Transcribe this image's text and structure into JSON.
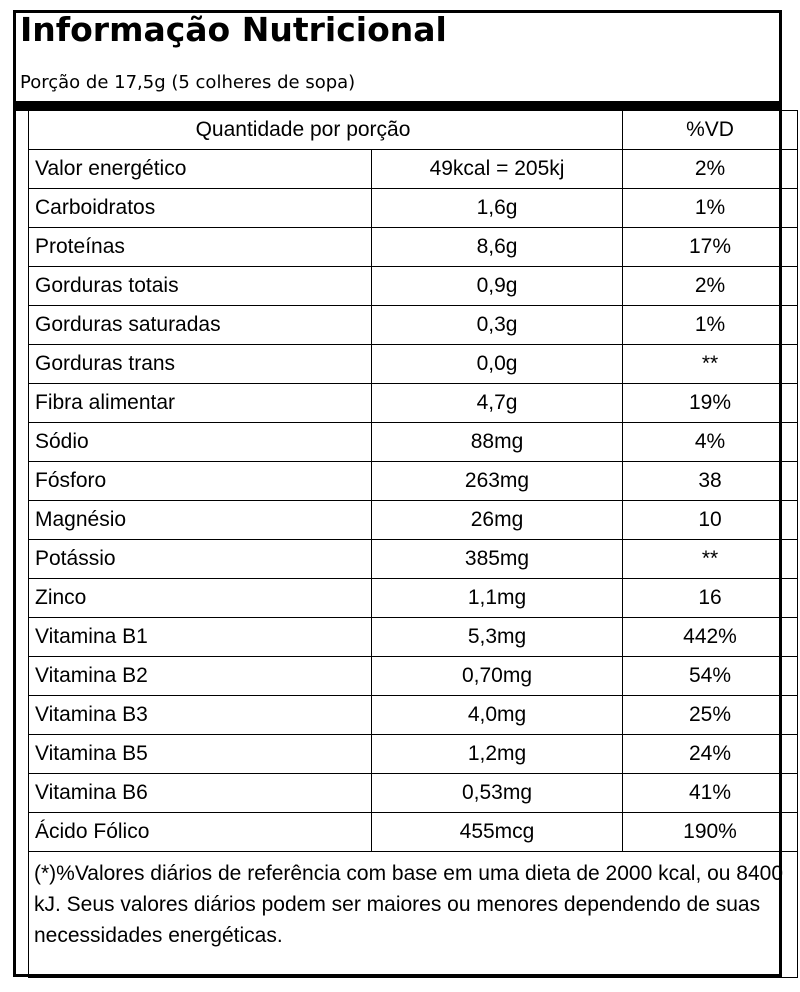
{
  "header": {
    "title": "Informação Nutricional",
    "serving": "Porção de 17,5g (5 colheres de sopa)"
  },
  "table": {
    "col_quantity": "Quantidade por porção",
    "col_vd": "%VD",
    "rows": [
      {
        "name": "Valor energético",
        "amount": "49kcal = 205kj",
        "vd": "2%"
      },
      {
        "name": "Carboidratos",
        "amount": "1,6g",
        "vd": "1%"
      },
      {
        "name": "Proteínas",
        "amount": "8,6g",
        "vd": "17%"
      },
      {
        "name": "Gorduras totais",
        "amount": "0,9g",
        "vd": "2%"
      },
      {
        "name": "Gorduras saturadas",
        "amount": "0,3g",
        "vd": "1%"
      },
      {
        "name": "Gorduras trans",
        "amount": "0,0g",
        "vd": "**"
      },
      {
        "name": "Fibra alimentar",
        "amount": "4,7g",
        "vd": "19%"
      },
      {
        "name": "Sódio",
        "amount": "88mg",
        "vd": "4%"
      },
      {
        "name": "Fósforo",
        "amount": "263mg",
        "vd": "38"
      },
      {
        "name": "Magnésio",
        "amount": "26mg",
        "vd": "10"
      },
      {
        "name": "Potássio",
        "amount": "385mg",
        "vd": "**"
      },
      {
        "name": "Zinco",
        "amount": "1,1mg",
        "vd": "16"
      },
      {
        "name": "Vitamina B1",
        "amount": "5,3mg",
        "vd": "442%"
      },
      {
        "name": "Vitamina B2",
        "amount": "0,70mg",
        "vd": "54%"
      },
      {
        "name": "Vitamina B3",
        "amount": "4,0mg",
        "vd": "25%"
      },
      {
        "name": "Vitamina B5",
        "amount": "1,2mg",
        "vd": "24%"
      },
      {
        "name": "Vitamina B6",
        "amount": "0,53mg",
        "vd": "41%"
      },
      {
        "name": "Ácido Fólico",
        "amount": "455mcg",
        "vd": "190%"
      }
    ],
    "footnote": "(*)%Valores diários de referência com base em uma dieta de 2000 kcal, ou 8400 kJ. Seus valores diários podem ser maiores ou menores dependendo de suas necessidades energéticas."
  }
}
